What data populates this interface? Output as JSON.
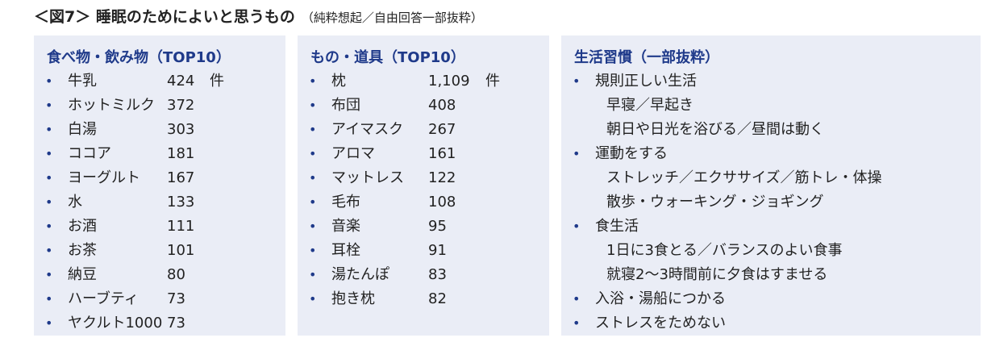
{
  "title": {
    "main": "＜図7＞ 睡眠のためによいと思うもの",
    "sub": "（純粋想起／自由回答一部抜粋）"
  },
  "food": {
    "heading": "食べ物・飲み物（TOP10）",
    "unit": "件",
    "items": [
      {
        "name": "牛乳",
        "count": "424"
      },
      {
        "name": "ホットミルク",
        "count": "372"
      },
      {
        "name": "白湯",
        "count": "303"
      },
      {
        "name": "ココア",
        "count": "181"
      },
      {
        "name": "ヨーグルト",
        "count": "167"
      },
      {
        "name": "水",
        "count": "133"
      },
      {
        "name": "お酒",
        "count": "111"
      },
      {
        "name": "お茶",
        "count": "101"
      },
      {
        "name": "納豆",
        "count": "80"
      },
      {
        "name": "ハーブティ",
        "count": "73"
      },
      {
        "name": "ヤクルト1000",
        "count": "73"
      }
    ]
  },
  "goods": {
    "heading": "もの・道具（TOP10）",
    "unit": "件",
    "items": [
      {
        "name": "枕",
        "count": "1,109"
      },
      {
        "name": "布団",
        "count": "408"
      },
      {
        "name": "アイマスク",
        "count": "267"
      },
      {
        "name": "アロマ",
        "count": "161"
      },
      {
        "name": "マットレス",
        "count": "122"
      },
      {
        "name": "毛布",
        "count": "108"
      },
      {
        "name": "音楽",
        "count": "95"
      },
      {
        "name": "耳栓",
        "count": "91"
      },
      {
        "name": "湯たんぽ",
        "count": "83"
      },
      {
        "name": "抱き枕",
        "count": "82"
      }
    ]
  },
  "habits": {
    "heading": "生活習慣（一部抜粋）",
    "items": [
      {
        "text": "規則正しい生活",
        "bullet": true
      },
      {
        "text": "早寝／早起き",
        "bullet": false
      },
      {
        "text": "朝日や日光を浴びる／昼間は動く",
        "bullet": false
      },
      {
        "text": "運動をする",
        "bullet": true
      },
      {
        "text": "ストレッチ／エクササイズ／筋トレ・体操",
        "bullet": false
      },
      {
        "text": "散歩・ウォーキング・ジョギング",
        "bullet": false
      },
      {
        "text": "食生活",
        "bullet": true
      },
      {
        "text": "1日に3食とる／バランスのよい食事",
        "bullet": false
      },
      {
        "text": "就寝2～3時間前に夕食はすませる",
        "bullet": false
      },
      {
        "text": "入浴・湯船につかる",
        "bullet": true
      },
      {
        "text": "ストレスをためない",
        "bullet": true
      }
    ]
  },
  "colors": {
    "panel_bg": "#eaedf6",
    "accent": "#1f3a8a"
  }
}
